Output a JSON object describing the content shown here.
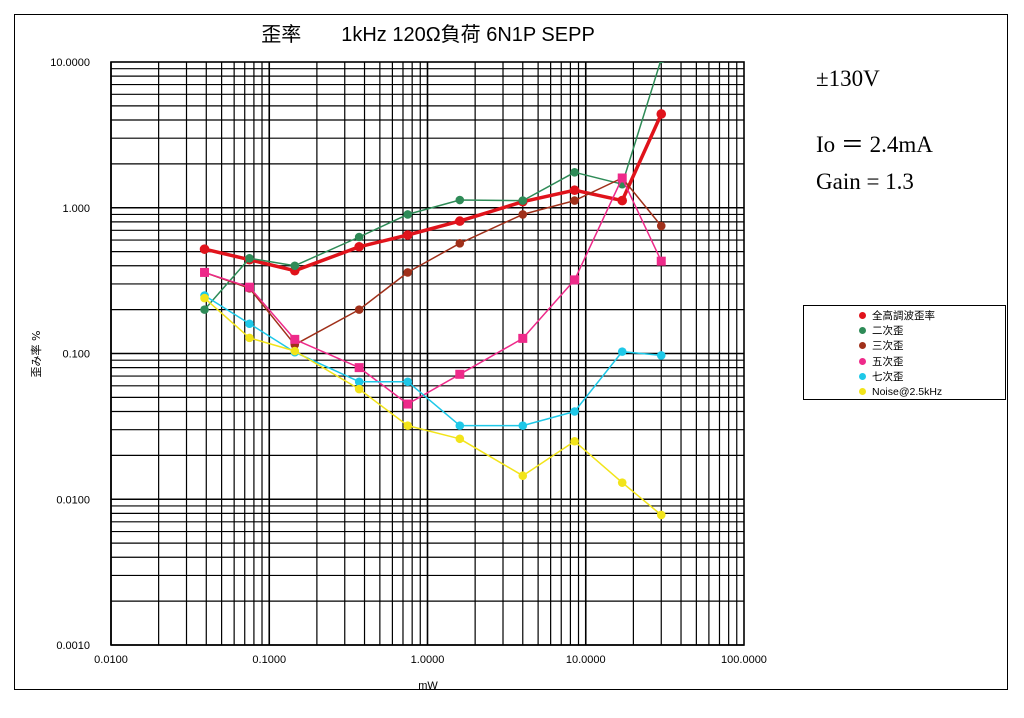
{
  "annotations": {
    "voltage": "±130V",
    "current": "Io ＝ 2.4mA",
    "gain": "Gain = 1.3"
  },
  "chart_data": {
    "type": "line",
    "title": "歪率　　1kHz 120Ω負荷  6N1P SEPP",
    "xlabel": "mW",
    "ylabel": "歪み率 %",
    "xscale": "log",
    "yscale": "log",
    "xlim": [
      0.01,
      100
    ],
    "ylim": [
      0.001,
      10
    ],
    "xticks": [
      "0.0100",
      "0.1000",
      "1.0000",
      "10.0000",
      "100.0000"
    ],
    "yticks": [
      "0.0010",
      "0.0100",
      "0.100",
      "1.000",
      "10.0000"
    ],
    "grid": true,
    "legend_position": "right",
    "series": [
      {
        "name": "全高調波歪率",
        "color": "#e0131b",
        "marker": "circle",
        "width": 3.5,
        "points": [
          [
            0.039,
            0.52
          ],
          [
            0.075,
            0.44
          ],
          [
            0.145,
            0.37
          ],
          [
            0.37,
            0.54
          ],
          [
            0.75,
            0.65
          ],
          [
            1.6,
            0.81
          ],
          [
            4.0,
            1.1
          ],
          [
            8.5,
            1.32
          ],
          [
            17,
            1.12
          ],
          [
            30,
            4.4
          ]
        ]
      },
      {
        "name": "二次歪",
        "color": "#2e8b57",
        "marker": "circle",
        "width": 1.5,
        "points": [
          [
            0.039,
            0.2
          ],
          [
            0.075,
            0.45
          ],
          [
            0.145,
            0.4
          ],
          [
            0.37,
            0.63
          ],
          [
            0.75,
            0.9
          ],
          [
            1.6,
            1.13
          ],
          [
            4.0,
            1.12
          ],
          [
            8.5,
            1.75
          ],
          [
            17,
            1.45
          ],
          [
            30,
            10.5
          ]
        ]
      },
      {
        "name": "三次歪",
        "color": "#a0301a",
        "marker": "circle",
        "width": 1.5,
        "points": [
          [
            0.039,
            0.36
          ],
          [
            0.075,
            0.28
          ],
          [
            0.145,
            0.115
          ],
          [
            0.37,
            0.2
          ],
          [
            0.75,
            0.36
          ],
          [
            1.6,
            0.57
          ],
          [
            4.0,
            0.9
          ],
          [
            8.5,
            1.12
          ],
          [
            17,
            1.6
          ],
          [
            30,
            0.75
          ]
        ]
      },
      {
        "name": "五次歪",
        "color": "#ee2a8a",
        "marker": "square",
        "width": 1.5,
        "points": [
          [
            0.039,
            0.36
          ],
          [
            0.075,
            0.285
          ],
          [
            0.145,
            0.125
          ],
          [
            0.37,
            0.08
          ],
          [
            0.75,
            0.045
          ],
          [
            1.6,
            0.072
          ],
          [
            4.0,
            0.127
          ],
          [
            8.5,
            0.32
          ],
          [
            17,
            1.6
          ],
          [
            30,
            0.43
          ]
        ]
      },
      {
        "name": "七次歪",
        "color": "#1ec8e8",
        "marker": "circle",
        "width": 1.5,
        "points": [
          [
            0.039,
            0.25
          ],
          [
            0.075,
            0.16
          ],
          [
            0.145,
            0.102
          ],
          [
            0.37,
            0.064
          ],
          [
            0.75,
            0.064
          ],
          [
            1.6,
            0.032
          ],
          [
            4.0,
            0.032
          ],
          [
            8.5,
            0.04
          ],
          [
            17,
            0.103
          ],
          [
            30,
            0.097
          ]
        ]
      },
      {
        "name": "Noise@2.5kHz",
        "color": "#f2e41a",
        "marker": "circle",
        "width": 1.5,
        "points": [
          [
            0.039,
            0.24
          ],
          [
            0.075,
            0.128
          ],
          [
            0.145,
            0.104
          ],
          [
            0.37,
            0.057
          ],
          [
            0.75,
            0.032
          ],
          [
            1.6,
            0.026
          ],
          [
            4.0,
            0.0145
          ],
          [
            8.5,
            0.025
          ],
          [
            17,
            0.013
          ],
          [
            30,
            0.0078
          ]
        ]
      }
    ]
  }
}
